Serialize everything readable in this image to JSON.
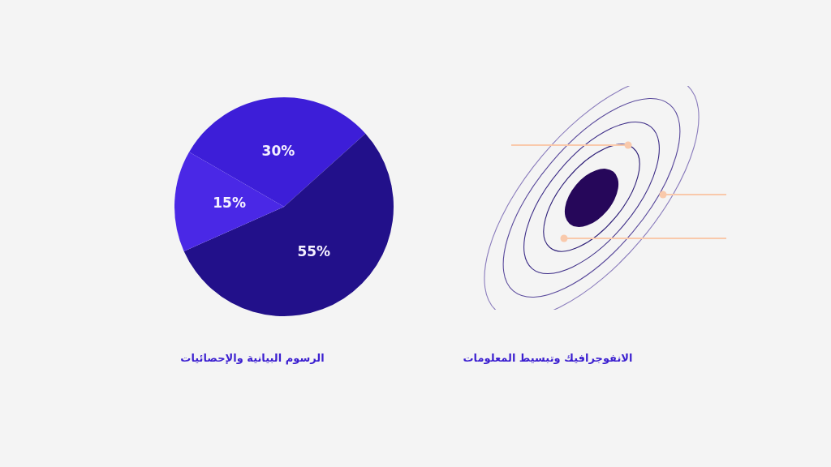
{
  "chart_data": [
    {
      "type": "pie",
      "categories": [
        null,
        null,
        null
      ],
      "values": [
        30,
        55,
        15
      ],
      "colors": [
        "#3d1ed8",
        "#22108a",
        "#4a28e6"
      ],
      "value_labels": [
        "30%",
        "55%",
        "15%"
      ],
      "annotations": [
        "الرسوم البيانية والإحصائيات"
      ]
    },
    {
      "type": "other",
      "annotations": [
        "الانفوجرافيك وتبسيط المعلومات"
      ]
    }
  ]
}
